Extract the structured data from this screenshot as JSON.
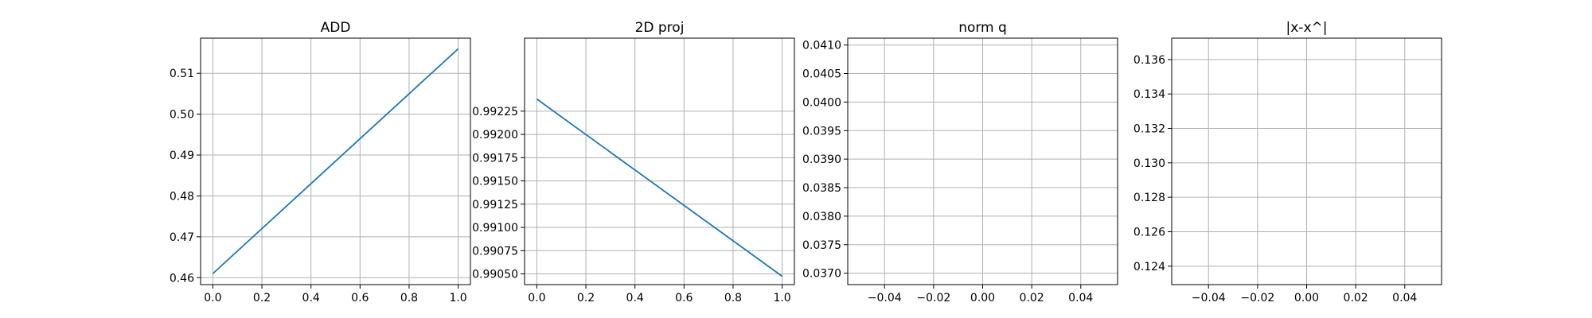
{
  "figure": {
    "background": "#ffffff",
    "line_color": "#1f77b4",
    "grid_color": "#b0b0b0"
  },
  "chart_data": [
    {
      "type": "line",
      "title": "ADD",
      "xlabel": "",
      "ylabel": "",
      "grid": true,
      "xlim": [
        -0.05,
        1.05
      ],
      "ylim": [
        0.4583,
        0.5186
      ],
      "xticks": [
        0.0,
        0.2,
        0.4,
        0.6,
        0.8,
        1.0
      ],
      "xtick_labels": [
        "0.0",
        "0.2",
        "0.4",
        "0.6",
        "0.8",
        "1.0"
      ],
      "yticks": [
        0.46,
        0.47,
        0.48,
        0.49,
        0.5,
        0.51
      ],
      "ytick_labels": [
        "0.46",
        "0.47",
        "0.48",
        "0.49",
        "0.50",
        "0.51"
      ],
      "series": [
        {
          "x": [
            0.0,
            1.0
          ],
          "y": [
            0.461,
            0.516
          ]
        }
      ]
    },
    {
      "type": "line",
      "title": "2D proj",
      "xlabel": "",
      "ylabel": "",
      "grid": true,
      "xlim": [
        -0.05,
        1.05
      ],
      "ylim": [
        0.990385,
        0.993035
      ],
      "xticks": [
        0.0,
        0.2,
        0.4,
        0.6,
        0.8,
        1.0
      ],
      "xtick_labels": [
        "0.0",
        "0.2",
        "0.4",
        "0.6",
        "0.8",
        "1.0"
      ],
      "yticks": [
        0.9905,
        0.99075,
        0.991,
        0.99125,
        0.9915,
        0.99175,
        0.992,
        0.99225
      ],
      "ytick_labels": [
        "0.99050",
        "0.99075",
        "0.99100",
        "0.99125",
        "0.99150",
        "0.99175",
        "0.99200",
        "0.99225"
      ],
      "series": [
        {
          "x": [
            0.0,
            1.0
          ],
          "y": [
            0.99238,
            0.990475
          ]
        }
      ]
    },
    {
      "type": "line",
      "title": "norm q",
      "xlabel": "",
      "ylabel": "",
      "grid": true,
      "xlim": [
        -0.055,
        0.055
      ],
      "ylim": [
        0.0368,
        0.04112
      ],
      "xticks": [
        -0.04,
        -0.02,
        0.0,
        0.02,
        0.04
      ],
      "xtick_labels": [
        "−0.04",
        "−0.02",
        "0.00",
        "0.02",
        "0.04"
      ],
      "yticks": [
        0.037,
        0.0375,
        0.038,
        0.0385,
        0.039,
        0.0395,
        0.04,
        0.0405,
        0.041
      ],
      "ytick_labels": [
        "0.0370",
        "0.0375",
        "0.0380",
        "0.0385",
        "0.0390",
        "0.0395",
        "0.0400",
        "0.0405",
        "0.0410"
      ],
      "series": []
    },
    {
      "type": "line",
      "title": "|x-x^|",
      "xlabel": "",
      "ylabel": "",
      "grid": true,
      "xlim": [
        -0.055,
        0.055
      ],
      "ylim": [
        0.12293,
        0.13724
      ],
      "xticks": [
        -0.04,
        -0.02,
        0.0,
        0.02,
        0.04
      ],
      "xtick_labels": [
        "−0.04",
        "−0.02",
        "0.00",
        "0.02",
        "0.04"
      ],
      "yticks": [
        0.124,
        0.126,
        0.128,
        0.13,
        0.132,
        0.134,
        0.136
      ],
      "ytick_labels": [
        "0.124",
        "0.126",
        "0.128",
        "0.130",
        "0.132",
        "0.134",
        "0.136"
      ],
      "series": []
    }
  ]
}
